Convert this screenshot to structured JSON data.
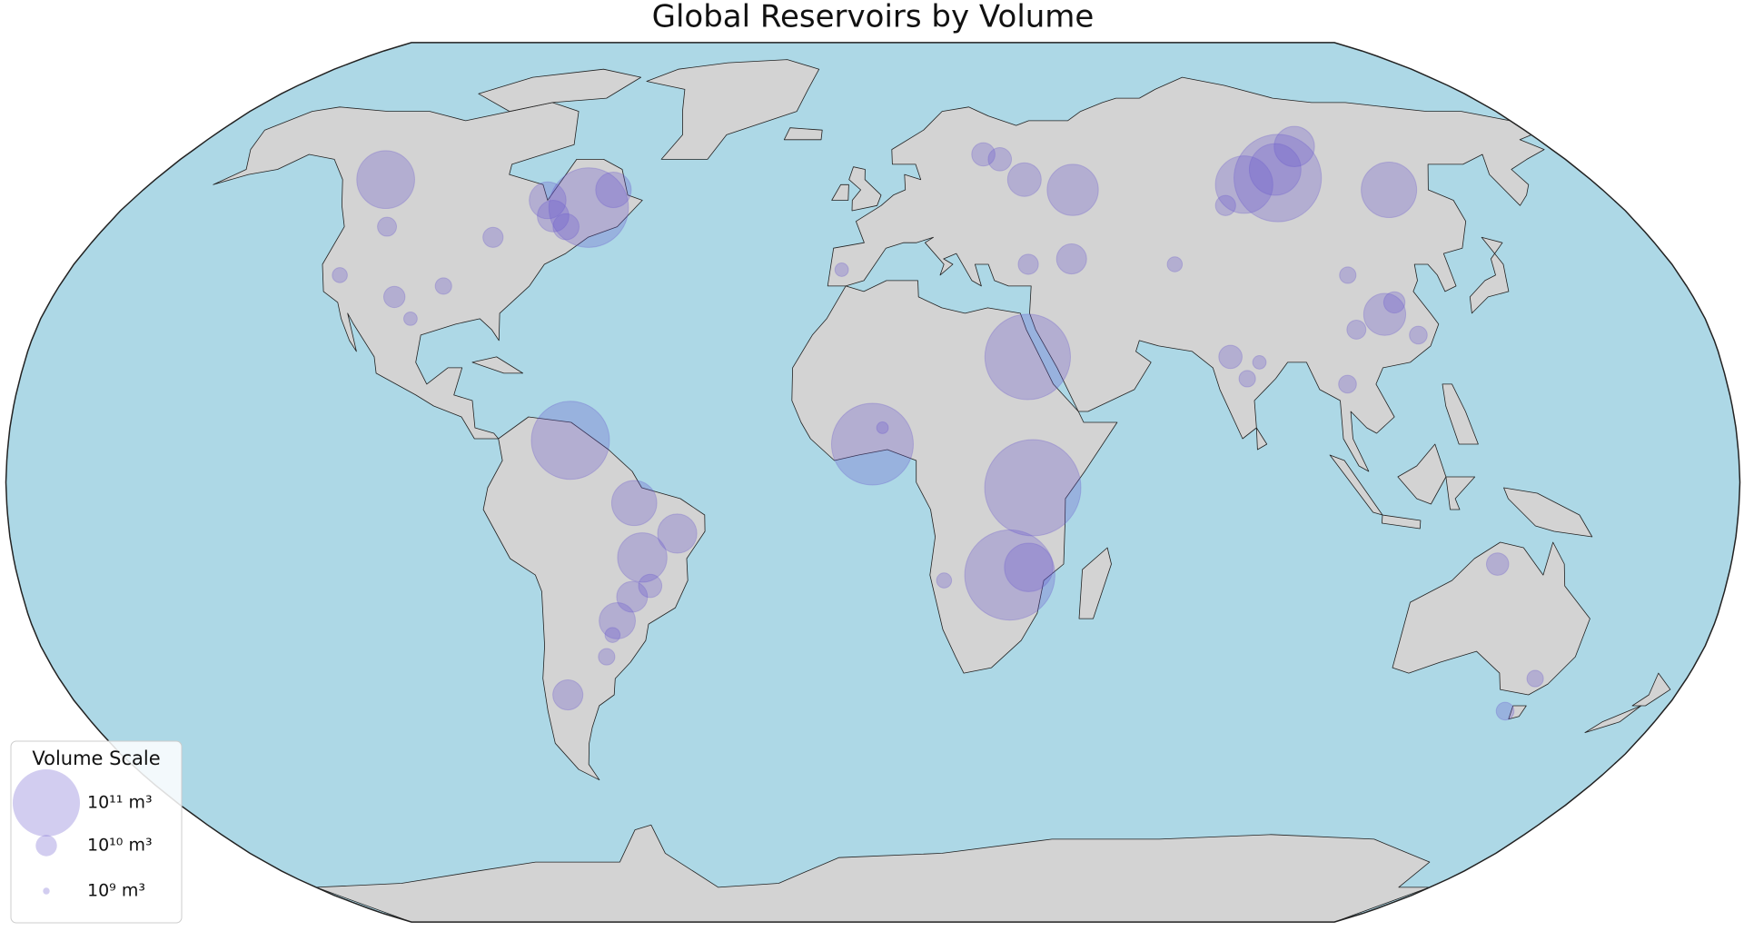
{
  "map": {
    "title": "Global Reservoirs by Volume",
    "color": "#6a5acd",
    "legend": {
      "title": "Volume Scale",
      "entries": [
        {
          "value": 100000000000,
          "label": "10¹¹ m³"
        },
        {
          "value": 10000000000,
          "label": "10¹⁰ m³"
        },
        {
          "value": 1000000000,
          "label": "10⁹ m³"
        }
      ]
    },
    "reservoirs": {
      "lon": [
        -0.1,
        28.8,
        32.9,
        33.2,
        32.7,
        101.8,
        102.7,
        92.3,
        112.4,
        127.3,
        49.3,
        -63,
        -68.3,
        -122.2,
        -64,
        -76,
        -72,
        -79,
        -88,
        -95,
        -105,
        -119,
        -114,
        -100,
        -49.6,
        -40.8,
        -48.3,
        -54.6,
        -51,
        -47,
        -56,
        -68.4,
        -58,
        111,
        104,
        114,
        117,
        106,
        76,
        79,
        82,
        100,
        33,
        38,
        45,
        35,
        -7,
        2,
        146.5,
        131,
        15,
        144,
        68,
        85,
        29
      ],
      "lat": [
        7,
        -17,
        23,
        -1,
        -15.6,
        56.3,
        58,
        55,
        62.6,
        54,
        54,
        7.7,
        50.6,
        56,
        54,
        49,
        47,
        52,
        45,
        36,
        34,
        38,
        47,
        30,
        -3.8,
        -9.4,
        -13.8,
        -25.4,
        -21,
        -19,
        -28,
        -39,
        -32,
        30.8,
        28,
        33,
        27,
        38,
        23,
        19,
        22,
        18,
        60,
        56,
        41,
        40,
        39,
        10,
        -36,
        -15,
        -18,
        -42,
        40,
        51,
        61
      ],
      "volume": [
        148000000000,
        180000000000,
        162000000000,
        205000000000,
        52000000000,
        169000000000,
        59000000000,
        73000000000,
        36000000000,
        68000000000,
        58000000000,
        135000000000,
        140000000000,
        74000000000,
        28000000000,
        22000000000,
        15000000000,
        30000000000,
        9000000000,
        6000000000,
        10000000000,
        5000000000,
        8000000000,
        4000000000,
        45000000000,
        34000000000,
        54000000000,
        29000000000,
        21000000000,
        12000000000,
        5000000000,
        20000000000,
        6000000000,
        39000000000,
        8000000000,
        10000000000,
        7000000000,
        6000000000,
        12000000000,
        6000000000,
        4000000000,
        7000000000,
        12000000000,
        25000000000,
        20000000000,
        9000000000,
        4000000000,
        3000000000,
        6000000000,
        11000000000,
        5000000000,
        7000000000,
        5000000000,
        9000000000,
        12000000000
      ]
    }
  }
}
